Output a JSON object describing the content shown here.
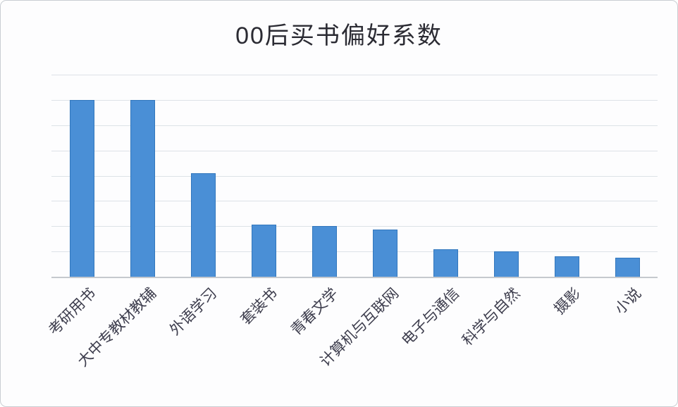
{
  "chart_data": {
    "type": "bar",
    "title": "00后买书偏好系数",
    "categories": [
      "考研用书",
      "大中专教材教辅",
      "外语学习",
      "套装书",
      "青春文学",
      "计算机与互联网",
      "电子与通信",
      "科学与自然",
      "摄影",
      "小说"
    ],
    "values": [
      3.5,
      3.5,
      2.05,
      1.03,
      1.0,
      0.93,
      0.55,
      0.5,
      0.4,
      0.37
    ],
    "xlabel": "",
    "ylabel": "",
    "ylim": [
      0,
      4
    ],
    "gridline_step": 0.5,
    "grid": true,
    "legend": "none",
    "y_tick_labels_visible": false,
    "x_label_rotation_deg": 45,
    "colors": {
      "bar_fill": "#4a8fd6",
      "bar_border": "#3277bd",
      "gridline": "#dde2e7",
      "axis_line": "#c5c9ce",
      "title_text": "#2b2b33",
      "label_text": "#3d3d4d",
      "card_background": "#fdfdfe",
      "card_border": "#c9ced3"
    }
  }
}
